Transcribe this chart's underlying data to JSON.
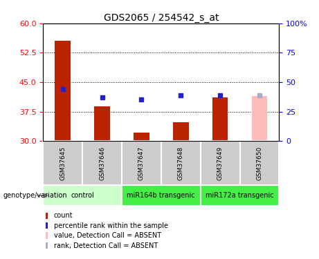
{
  "title": "GDS2065 / 254542_s_at",
  "samples": [
    "GSM37645",
    "GSM37646",
    "GSM37647",
    "GSM37648",
    "GSM37649",
    "GSM37650"
  ],
  "bar_values": [
    55.5,
    38.8,
    32.2,
    34.8,
    41.2,
    null
  ],
  "bar_absent_values": [
    null,
    null,
    null,
    null,
    null,
    41.5
  ],
  "rank_values": [
    43.2,
    41.2,
    40.6,
    41.6,
    41.7,
    null
  ],
  "rank_absent_values": [
    null,
    null,
    null,
    null,
    null,
    41.7
  ],
  "bar_color": "#bb2200",
  "bar_absent_color": "#ffbbbb",
  "rank_color": "#2222cc",
  "rank_absent_color": "#aaaacc",
  "ylim_left": [
    30,
    60
  ],
  "ylim_right": [
    0,
    100
  ],
  "left_ticks": [
    30,
    37.5,
    45,
    52.5,
    60
  ],
  "right_ticks": [
    0,
    25,
    50,
    75,
    100
  ],
  "right_tick_labels": [
    "0",
    "25",
    "50",
    "75",
    "100%"
  ],
  "gridlines": [
    37.5,
    45.0,
    52.5
  ],
  "group_info": [
    {
      "xstart": 0,
      "xend": 1,
      "label": "control",
      "color": "#ccffcc"
    },
    {
      "xstart": 2,
      "xend": 3,
      "label": "miR164b transgenic",
      "color": "#44ee44"
    },
    {
      "xstart": 4,
      "xend": 5,
      "label": "miR172a transgenic",
      "color": "#44ee44"
    }
  ],
  "legend_items": [
    {
      "label": "count",
      "color": "#bb2200"
    },
    {
      "label": "percentile rank within the sample",
      "color": "#2222cc"
    },
    {
      "label": "value, Detection Call = ABSENT",
      "color": "#ffbbbb"
    },
    {
      "label": "rank, Detection Call = ABSENT",
      "color": "#aaaacc"
    }
  ],
  "bar_width": 0.4,
  "title_fontsize": 10,
  "tick_fontsize": 8,
  "bar_base": 30,
  "sample_box_color": "#cccccc",
  "rank_marker_size": 4
}
